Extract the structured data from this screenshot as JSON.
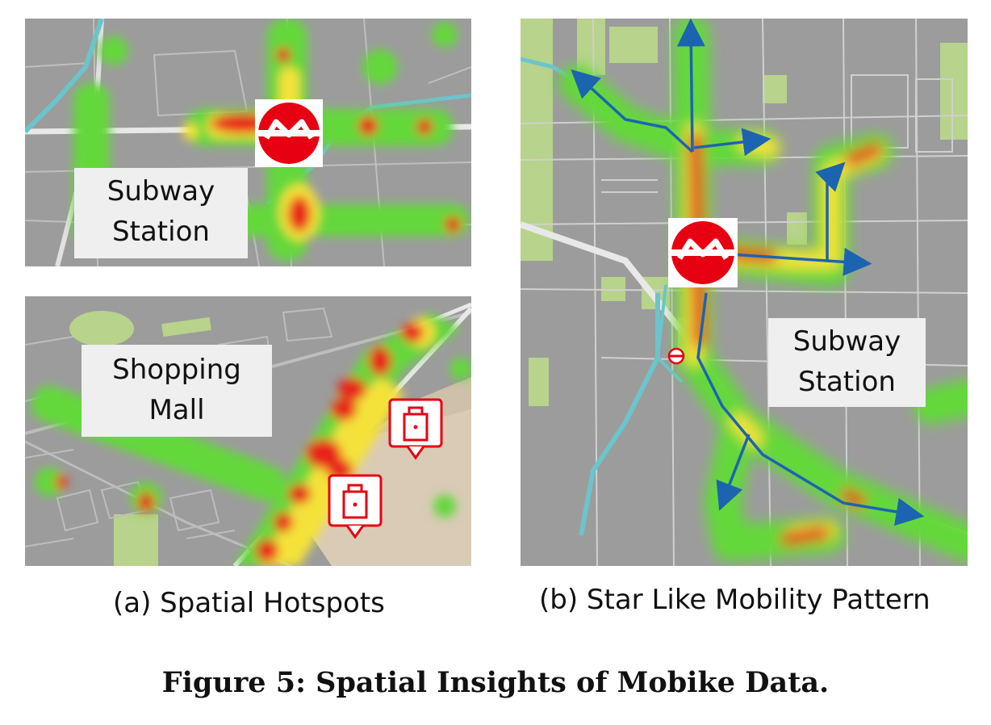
{
  "panel_a_top": {
    "label": "Subway\nStation"
  },
  "panel_a_bottom": {
    "label": "Shopping\nMall"
  },
  "panel_b": {
    "label": "Subway\nStation"
  },
  "captions": {
    "a": "(a) Spatial Hotspots",
    "b": "(b) Star Like Mobility Pattern"
  },
  "figure_title": "Figure 5: Spatial Insights of Mobike Data.",
  "colors": {
    "map_gray": "#9c9c9c",
    "road": "#bdbdbd",
    "water": "#6cc4cc",
    "park": "#b7d38c",
    "mall_area": "#d9cbb6",
    "heat_red": "#e8201e",
    "heat_yellow": "#f4e23a",
    "heat_green": "#63d83b",
    "metro_red": "#e60012",
    "arrow_blue": "#1d64b0"
  },
  "icons": [
    "metro-logo-icon",
    "shopping-bag-icon",
    "direction-arrow-icon"
  ]
}
